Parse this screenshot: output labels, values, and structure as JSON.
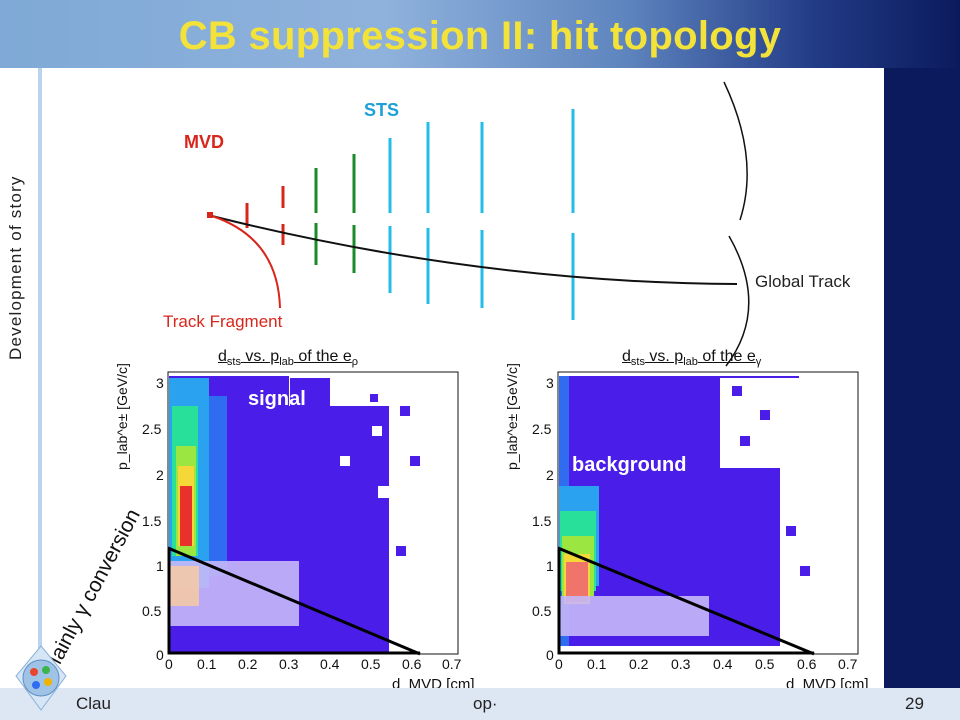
{
  "slide": {
    "title": "CB suppression II: hit topology",
    "side_label": "Development of story",
    "footer_text": "Clau",
    "footer_fragment": "op·",
    "page_number": "29"
  },
  "diagram": {
    "mvd_label": "MVD",
    "sts_label": "STS",
    "track_fragment_label": "Track Fragment",
    "global_track_label": "Global Track"
  },
  "plots": {
    "left": {
      "title_parts": [
        "d",
        "sts",
        " vs. p",
        "lab",
        " of the e",
        "ρ"
      ],
      "overlay_label": "signal",
      "ylabel": "p_lab^e± [GeV/c]",
      "xlabel": "d_MVD [cm]"
    },
    "right": {
      "title_parts": [
        "d",
        "sts",
        " vs. p",
        "lab",
        " of the e",
        "γ"
      ],
      "overlay_label": "background",
      "ylabel": "p_lab^e± [GeV/c]",
      "xlabel": "d_MVD [cm]"
    },
    "x_ticks": [
      "0",
      "0.1",
      "0.2",
      "0.3",
      "0.4",
      "0.5",
      "0.6",
      "0.7"
    ],
    "y_ticks": [
      "0",
      "0.5",
      "1",
      "1.5",
      "2",
      "2.5",
      "3"
    ],
    "annotation": "Mainly γ conversion"
  },
  "colors": {
    "title": "#f2e23a",
    "mvd": "#d9261c",
    "sts_green": "#1a8a2a",
    "sts_blue": "#22bde8",
    "plot_fill": "#4a1ee8"
  }
}
